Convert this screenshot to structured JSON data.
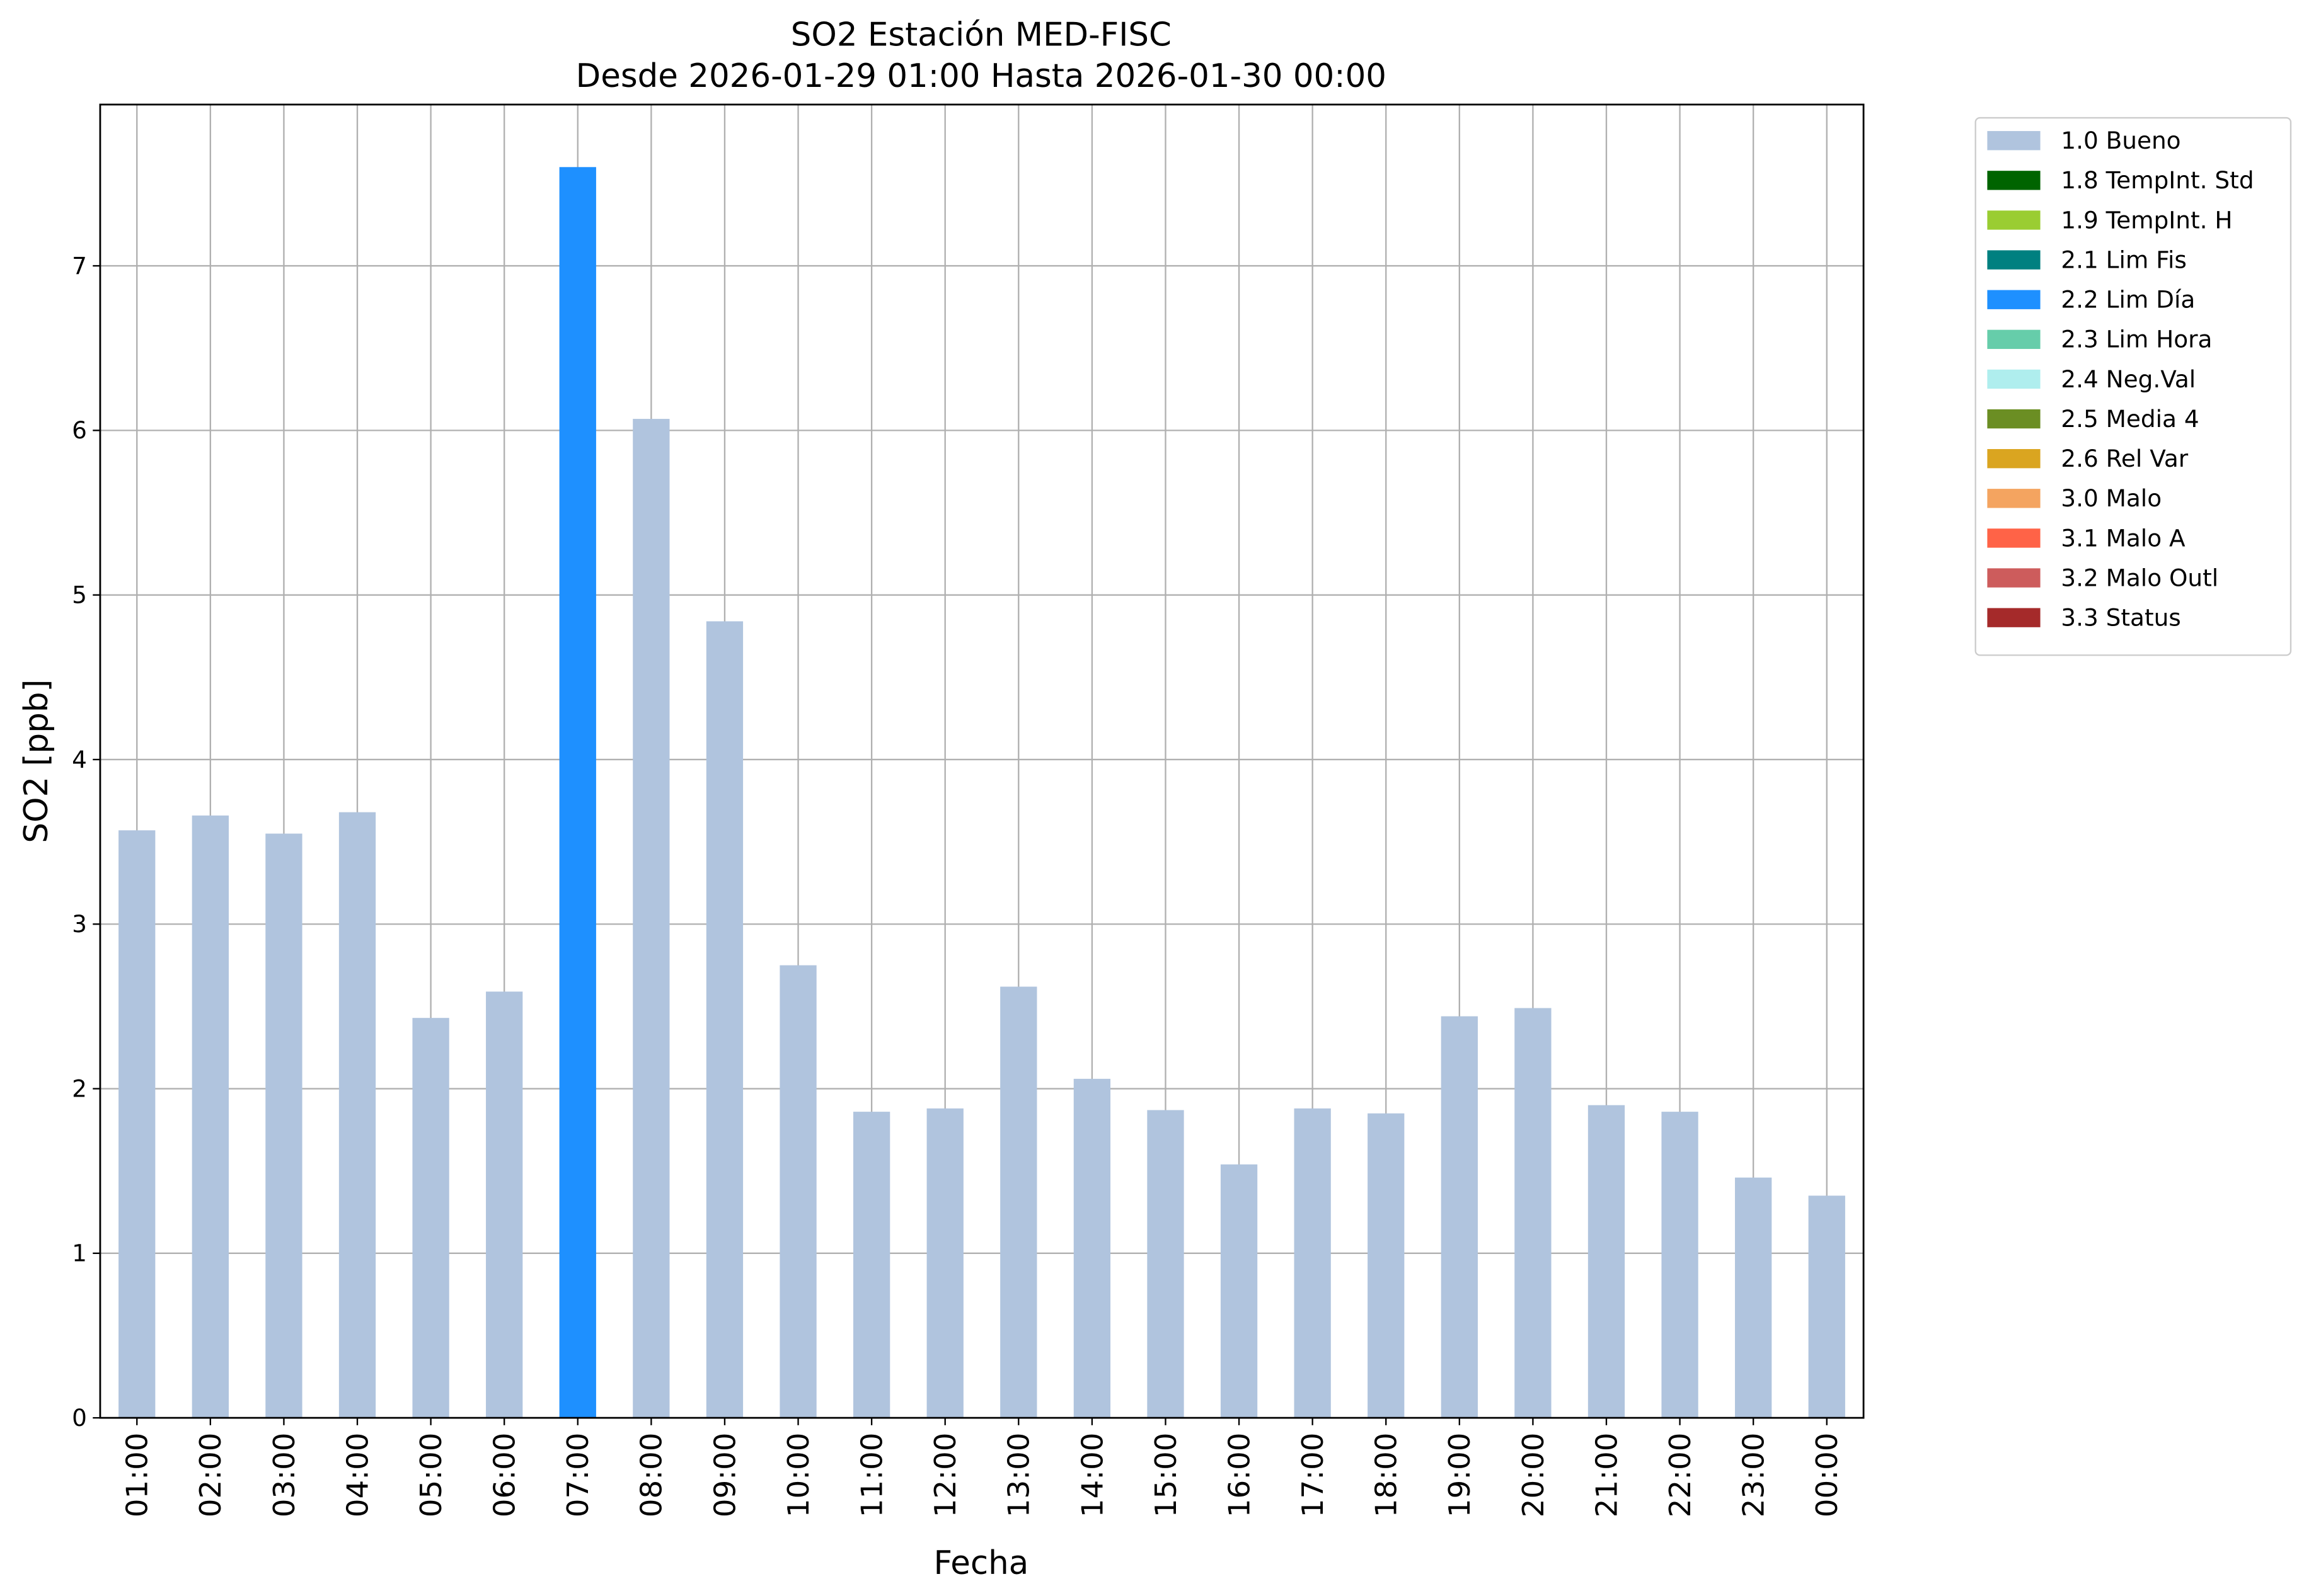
{
  "chart_data": {
    "type": "stacked_bar",
    "title": "SO2 Estación MED-FISC",
    "subtitle": "Desde 2026-01-29 01:00 Hasta 2026-01-30 00:00",
    "x_label": "Fecha",
    "y_label": "SO2 [ppb]",
    "categories": [
      "01:00",
      "02:00",
      "03:00",
      "04:00",
      "05:00",
      "06:00",
      "07:00",
      "08:00",
      "09:00",
      "10:00",
      "11:00",
      "12:00",
      "13:00",
      "14:00",
      "15:00",
      "16:00",
      "17:00",
      "18:00",
      "19:00",
      "20:00",
      "21:00",
      "22:00",
      "23:00",
      "00:00"
    ],
    "series": [
      {
        "name": "1.0 Bueno",
        "color": "#b0c4de",
        "values": [
          3.57,
          3.66,
          3.55,
          3.68,
          2.43,
          2.59,
          null,
          6.07,
          4.84,
          2.75,
          1.86,
          1.88,
          2.62,
          2.06,
          1.87,
          1.54,
          1.88,
          1.85,
          2.44,
          2.49,
          1.9,
          1.86,
          1.46,
          1.35
        ]
      },
      {
        "name": "1.8 TempInt. Std",
        "color": "#006400",
        "values": [
          null,
          null,
          null,
          null,
          null,
          null,
          null,
          null,
          null,
          null,
          null,
          null,
          null,
          null,
          null,
          null,
          null,
          null,
          null,
          null,
          null,
          null,
          null,
          null
        ]
      },
      {
        "name": "1.9 TempInt. H",
        "color": "#9acd32",
        "values": [
          null,
          null,
          null,
          null,
          null,
          null,
          null,
          null,
          null,
          null,
          null,
          null,
          null,
          null,
          null,
          null,
          null,
          null,
          null,
          null,
          null,
          null,
          null,
          null
        ]
      },
      {
        "name": "2.1 Lim Fis",
        "color": "#008080",
        "values": [
          null,
          null,
          null,
          null,
          null,
          null,
          null,
          null,
          null,
          null,
          null,
          null,
          null,
          null,
          null,
          null,
          null,
          null,
          null,
          null,
          null,
          null,
          null,
          null
        ]
      },
      {
        "name": "2.2 Lim Día",
        "color": "#1e90ff",
        "values": [
          null,
          null,
          null,
          null,
          null,
          null,
          7.6,
          null,
          null,
          null,
          null,
          null,
          null,
          null,
          null,
          null,
          null,
          null,
          null,
          null,
          null,
          null,
          null,
          null
        ]
      },
      {
        "name": "2.3 Lim Hora",
        "color": "#66cdaa",
        "values": [
          null,
          null,
          null,
          null,
          null,
          null,
          null,
          null,
          null,
          null,
          null,
          null,
          null,
          null,
          null,
          null,
          null,
          null,
          null,
          null,
          null,
          null,
          null,
          null
        ]
      },
      {
        "name": "2.4 Neg.Val",
        "color": "#afeeee",
        "values": [
          null,
          null,
          null,
          null,
          null,
          null,
          null,
          null,
          null,
          null,
          null,
          null,
          null,
          null,
          null,
          null,
          null,
          null,
          null,
          null,
          null,
          null,
          null,
          null
        ]
      },
      {
        "name": "2.5 Media 4",
        "color": "#6b8e23",
        "values": [
          null,
          null,
          null,
          null,
          null,
          null,
          null,
          null,
          null,
          null,
          null,
          null,
          null,
          null,
          null,
          null,
          null,
          null,
          null,
          null,
          null,
          null,
          null,
          null
        ]
      },
      {
        "name": "2.6 Rel Var",
        "color": "#daa520",
        "values": [
          null,
          null,
          null,
          null,
          null,
          null,
          null,
          null,
          null,
          null,
          null,
          null,
          null,
          null,
          null,
          null,
          null,
          null,
          null,
          null,
          null,
          null,
          null,
          null
        ]
      },
      {
        "name": "3.0 Malo",
        "color": "#f4a460",
        "values": [
          null,
          null,
          null,
          null,
          null,
          null,
          null,
          null,
          null,
          null,
          null,
          null,
          null,
          null,
          null,
          null,
          null,
          null,
          null,
          null,
          null,
          null,
          null,
          null
        ]
      },
      {
        "name": "3.1 Malo A",
        "color": "#ff6347",
        "values": [
          null,
          null,
          null,
          null,
          null,
          null,
          null,
          null,
          null,
          null,
          null,
          null,
          null,
          null,
          null,
          null,
          null,
          null,
          null,
          null,
          null,
          null,
          null,
          null
        ]
      },
      {
        "name": "3.2 Malo Outl",
        "color": "#cd5c5c",
        "values": [
          null,
          null,
          null,
          null,
          null,
          null,
          null,
          null,
          null,
          null,
          null,
          null,
          null,
          null,
          null,
          null,
          null,
          null,
          null,
          null,
          null,
          null,
          null,
          null
        ]
      },
      {
        "name": "3.3 Status",
        "color": "#a52a2a",
        "values": [
          null,
          null,
          null,
          null,
          null,
          null,
          null,
          null,
          null,
          null,
          null,
          null,
          null,
          null,
          null,
          null,
          null,
          null,
          null,
          null,
          null,
          null,
          null,
          null
        ]
      }
    ],
    "ylim": [
      0,
      7.98
    ],
    "yticks": [
      0,
      1,
      2,
      3,
      4,
      5,
      6,
      7
    ],
    "grid": true,
    "legend": "outside-upper-right"
  }
}
